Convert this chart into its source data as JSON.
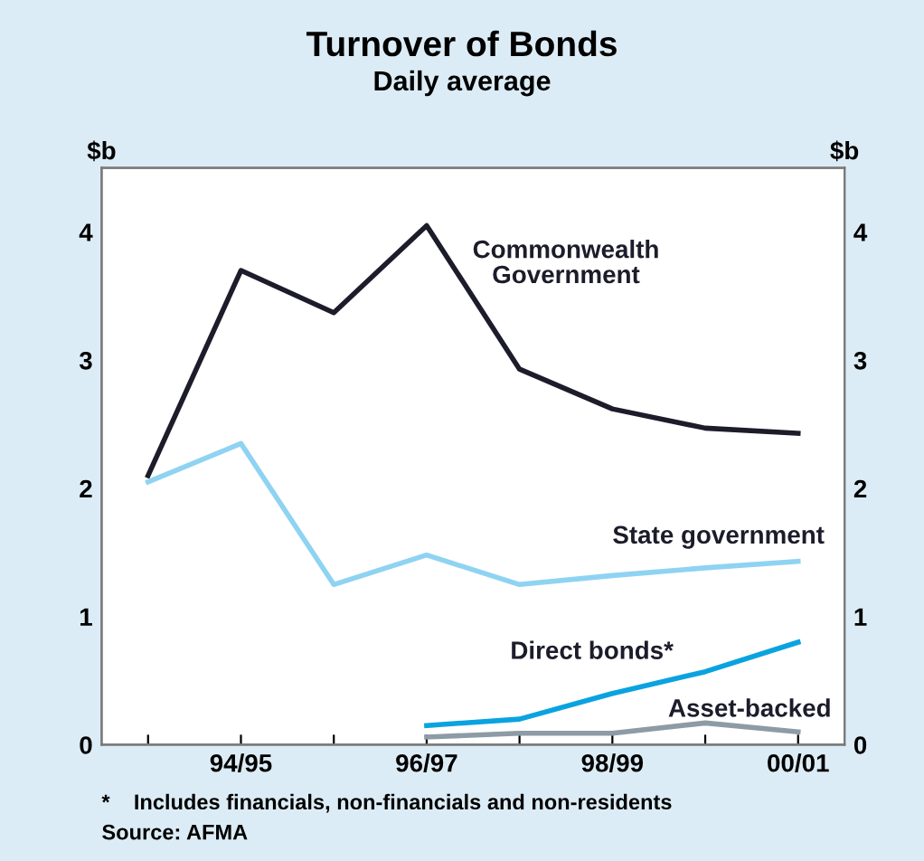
{
  "chart_data": {
    "type": "line",
    "title": "Turnover of Bonds",
    "subtitle": "Daily average",
    "ylabel": "$b",
    "y2label": "$b",
    "categories": [
      null,
      "94/95",
      null,
      "96/97",
      null,
      "98/99",
      null,
      "00/01"
    ],
    "series": [
      {
        "name": "Commonwealth\nGovernment",
        "color": "#1c1c2b",
        "values": [
          2.1,
          3.7,
          3.37,
          4.05,
          2.93,
          2.62,
          2.47,
          2.43
        ]
      },
      {
        "name": "State government",
        "color": "#8fd3f2",
        "values": [
          2.05,
          2.35,
          1.25,
          1.48,
          1.25,
          1.32,
          1.38,
          1.43
        ]
      },
      {
        "name": "Direct bonds*",
        "color": "#0aa3e0",
        "values": [
          null,
          null,
          null,
          0.15,
          0.2,
          0.4,
          0.57,
          0.8
        ]
      },
      {
        "name": "Asset-backed",
        "color": "#8d9ba6",
        "values": [
          null,
          null,
          null,
          0.06,
          0.09,
          0.09,
          0.17,
          0.1
        ]
      }
    ],
    "ylim": [
      0,
      4.5
    ],
    "yticks": [
      0,
      1,
      2,
      3,
      4
    ],
    "y2lim": [
      0,
      4.5
    ],
    "y2ticks": [
      0,
      1,
      2,
      3,
      4
    ],
    "grid": false,
    "legend": false,
    "marker": "none",
    "line_style": "solid",
    "annotations": [
      "*    Includes financials, non-financials and non-residents",
      "Source: AFMA"
    ]
  }
}
